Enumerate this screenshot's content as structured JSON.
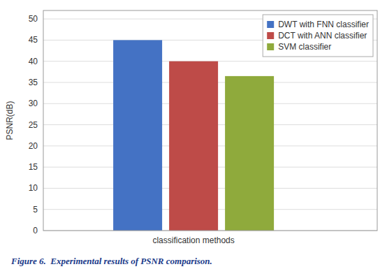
{
  "chart_data": {
    "type": "bar",
    "caption": "Figure 6.  Experimental results of PSNR comparison.",
    "categories": [
      "classification methods"
    ],
    "series": [
      {
        "name": "DWT with FNN classifier",
        "color": "#4472c4",
        "values": [
          45
        ]
      },
      {
        "name": "DCT with ANN classifier",
        "color": "#be4b48",
        "values": [
          40
        ]
      },
      {
        "name": "SVM classifier",
        "color": "#8faa3c",
        "values": [
          36.5
        ]
      }
    ],
    "ylabel": "PSNR(dB)",
    "ylim": [
      0,
      52
    ],
    "yticks": [
      0,
      5,
      10,
      15,
      20,
      25,
      30,
      35,
      40,
      45,
      50
    ],
    "grid": true,
    "legend": "upper right"
  }
}
